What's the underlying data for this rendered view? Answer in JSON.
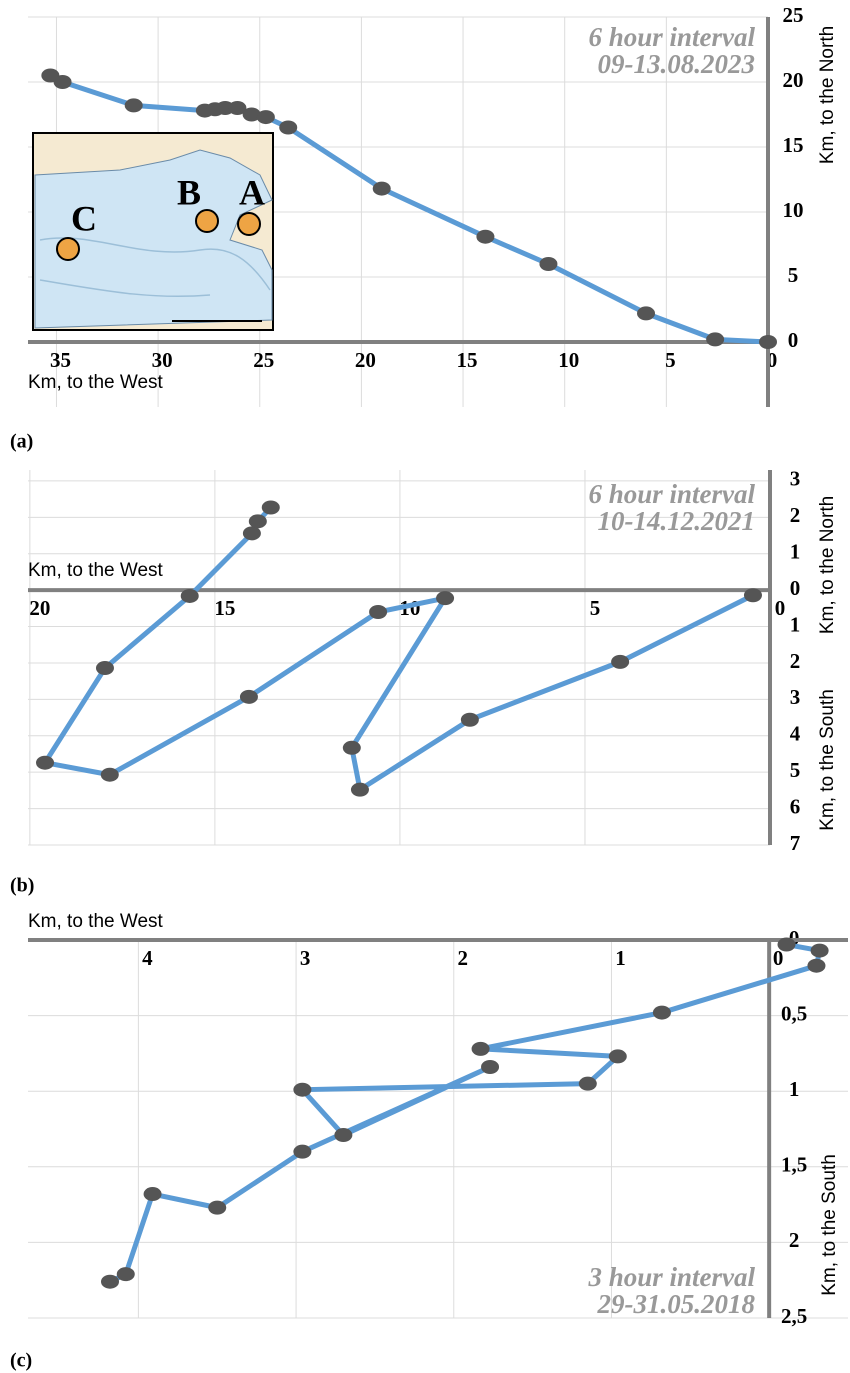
{
  "chart_data": [
    {
      "type": "line",
      "label": "(a)",
      "annotation": [
        "6 hour interval",
        "09-13.08.2023"
      ],
      "xlabel": "Km, to the West",
      "ylabels": [
        "Km, to the North"
      ],
      "xlim": [
        36.4,
        0
      ],
      "ylim": [
        -5,
        25
      ],
      "xticks": [
        35,
        30,
        25,
        20,
        15,
        10,
        5,
        0
      ],
      "yticks": [
        0,
        5,
        10,
        15,
        20,
        25
      ],
      "grid": true,
      "inset_labels": [
        "A",
        "B",
        "C"
      ],
      "series": [
        {
          "color": "#5b9bd5",
          "marker_color": "#555555",
          "x": [
            35.3,
            34.7,
            31.2,
            27.7,
            27.2,
            26.7,
            26.1,
            25.4,
            24.7,
            23.6,
            19.0,
            13.9,
            10.8,
            6.0,
            2.6,
            0
          ],
          "values": [
            20.5,
            20.0,
            18.2,
            17.8,
            17.9,
            18.0,
            18.0,
            17.5,
            17.3,
            16.5,
            11.8,
            8.1,
            6.0,
            2.2,
            0.2,
            0
          ]
        }
      ]
    },
    {
      "type": "line",
      "label": "(b)",
      "annotation": [
        "6 hour interval",
        "10-14.12.2021"
      ],
      "xlabel": "Km, to the West",
      "ylabels": [
        "Km, to the North",
        "Km, to the South"
      ],
      "xlim": [
        20.05,
        0
      ],
      "ylim": [
        -7,
        3.3
      ],
      "xticks": [
        20,
        15,
        10,
        5,
        0
      ],
      "yticks": [
        3,
        2,
        1,
        0,
        {
          "value": -1,
          "label": "1"
        },
        {
          "value": -2,
          "label": "2"
        },
        {
          "value": -3,
          "label": "3"
        },
        {
          "value": -4,
          "label": "4"
        },
        {
          "value": -5,
          "label": "5"
        },
        {
          "value": -6,
          "label": "6"
        },
        {
          "value": -7,
          "label": "7"
        }
      ],
      "grid": true,
      "series": [
        {
          "color": "#5b9bd5",
          "marker_color": "#555555",
          "x": [
            0.46,
            4.05,
            8.11,
            11.08,
            11.3,
            8.78,
            10.59,
            14.08,
            17.84,
            19.59,
            17.97,
            15.68,
            14.0,
            13.84,
            13.49
          ],
          "values": [
            -0.14,
            -1.97,
            -3.56,
            -5.48,
            -4.33,
            -0.22,
            -0.6,
            -2.93,
            -5.07,
            -4.74,
            -2.14,
            -0.16,
            1.56,
            1.89,
            2.27
          ]
        }
      ]
    },
    {
      "type": "line",
      "label": "(c)",
      "annotation": [
        "3 hour interval",
        "29-31.05.2018"
      ],
      "xlabel": "Km, to the West",
      "ylabels": [
        "Km, to the South"
      ],
      "xlim": [
        4.7,
        -0.5
      ],
      "ylim": [
        2.5,
        0
      ],
      "xticks": [
        4,
        3,
        2,
        1,
        0
      ],
      "yticks": [
        0,
        {
          "value": 0.5,
          "label": "0,5"
        },
        1,
        {
          "value": 1.5,
          "label": "1,5"
        },
        2,
        {
          "value": 2.5,
          "label": "2,5"
        }
      ],
      "grid": true,
      "series": [
        {
          "color": "#5b9bd5",
          "marker_color": "#555555",
          "x": [
            -0.11,
            -0.32,
            -0.3,
            0.68,
            1.83,
            0.96,
            1.15,
            2.96,
            2.7,
            1.77,
            2.96,
            3.5,
            3.91,
            4.08,
            4.18
          ],
          "values": [
            0.03,
            0.07,
            0.17,
            0.48,
            0.72,
            0.77,
            0.95,
            0.99,
            1.29,
            0.84,
            1.4,
            1.77,
            1.68,
            2.21,
            2.26
          ]
        }
      ]
    }
  ]
}
